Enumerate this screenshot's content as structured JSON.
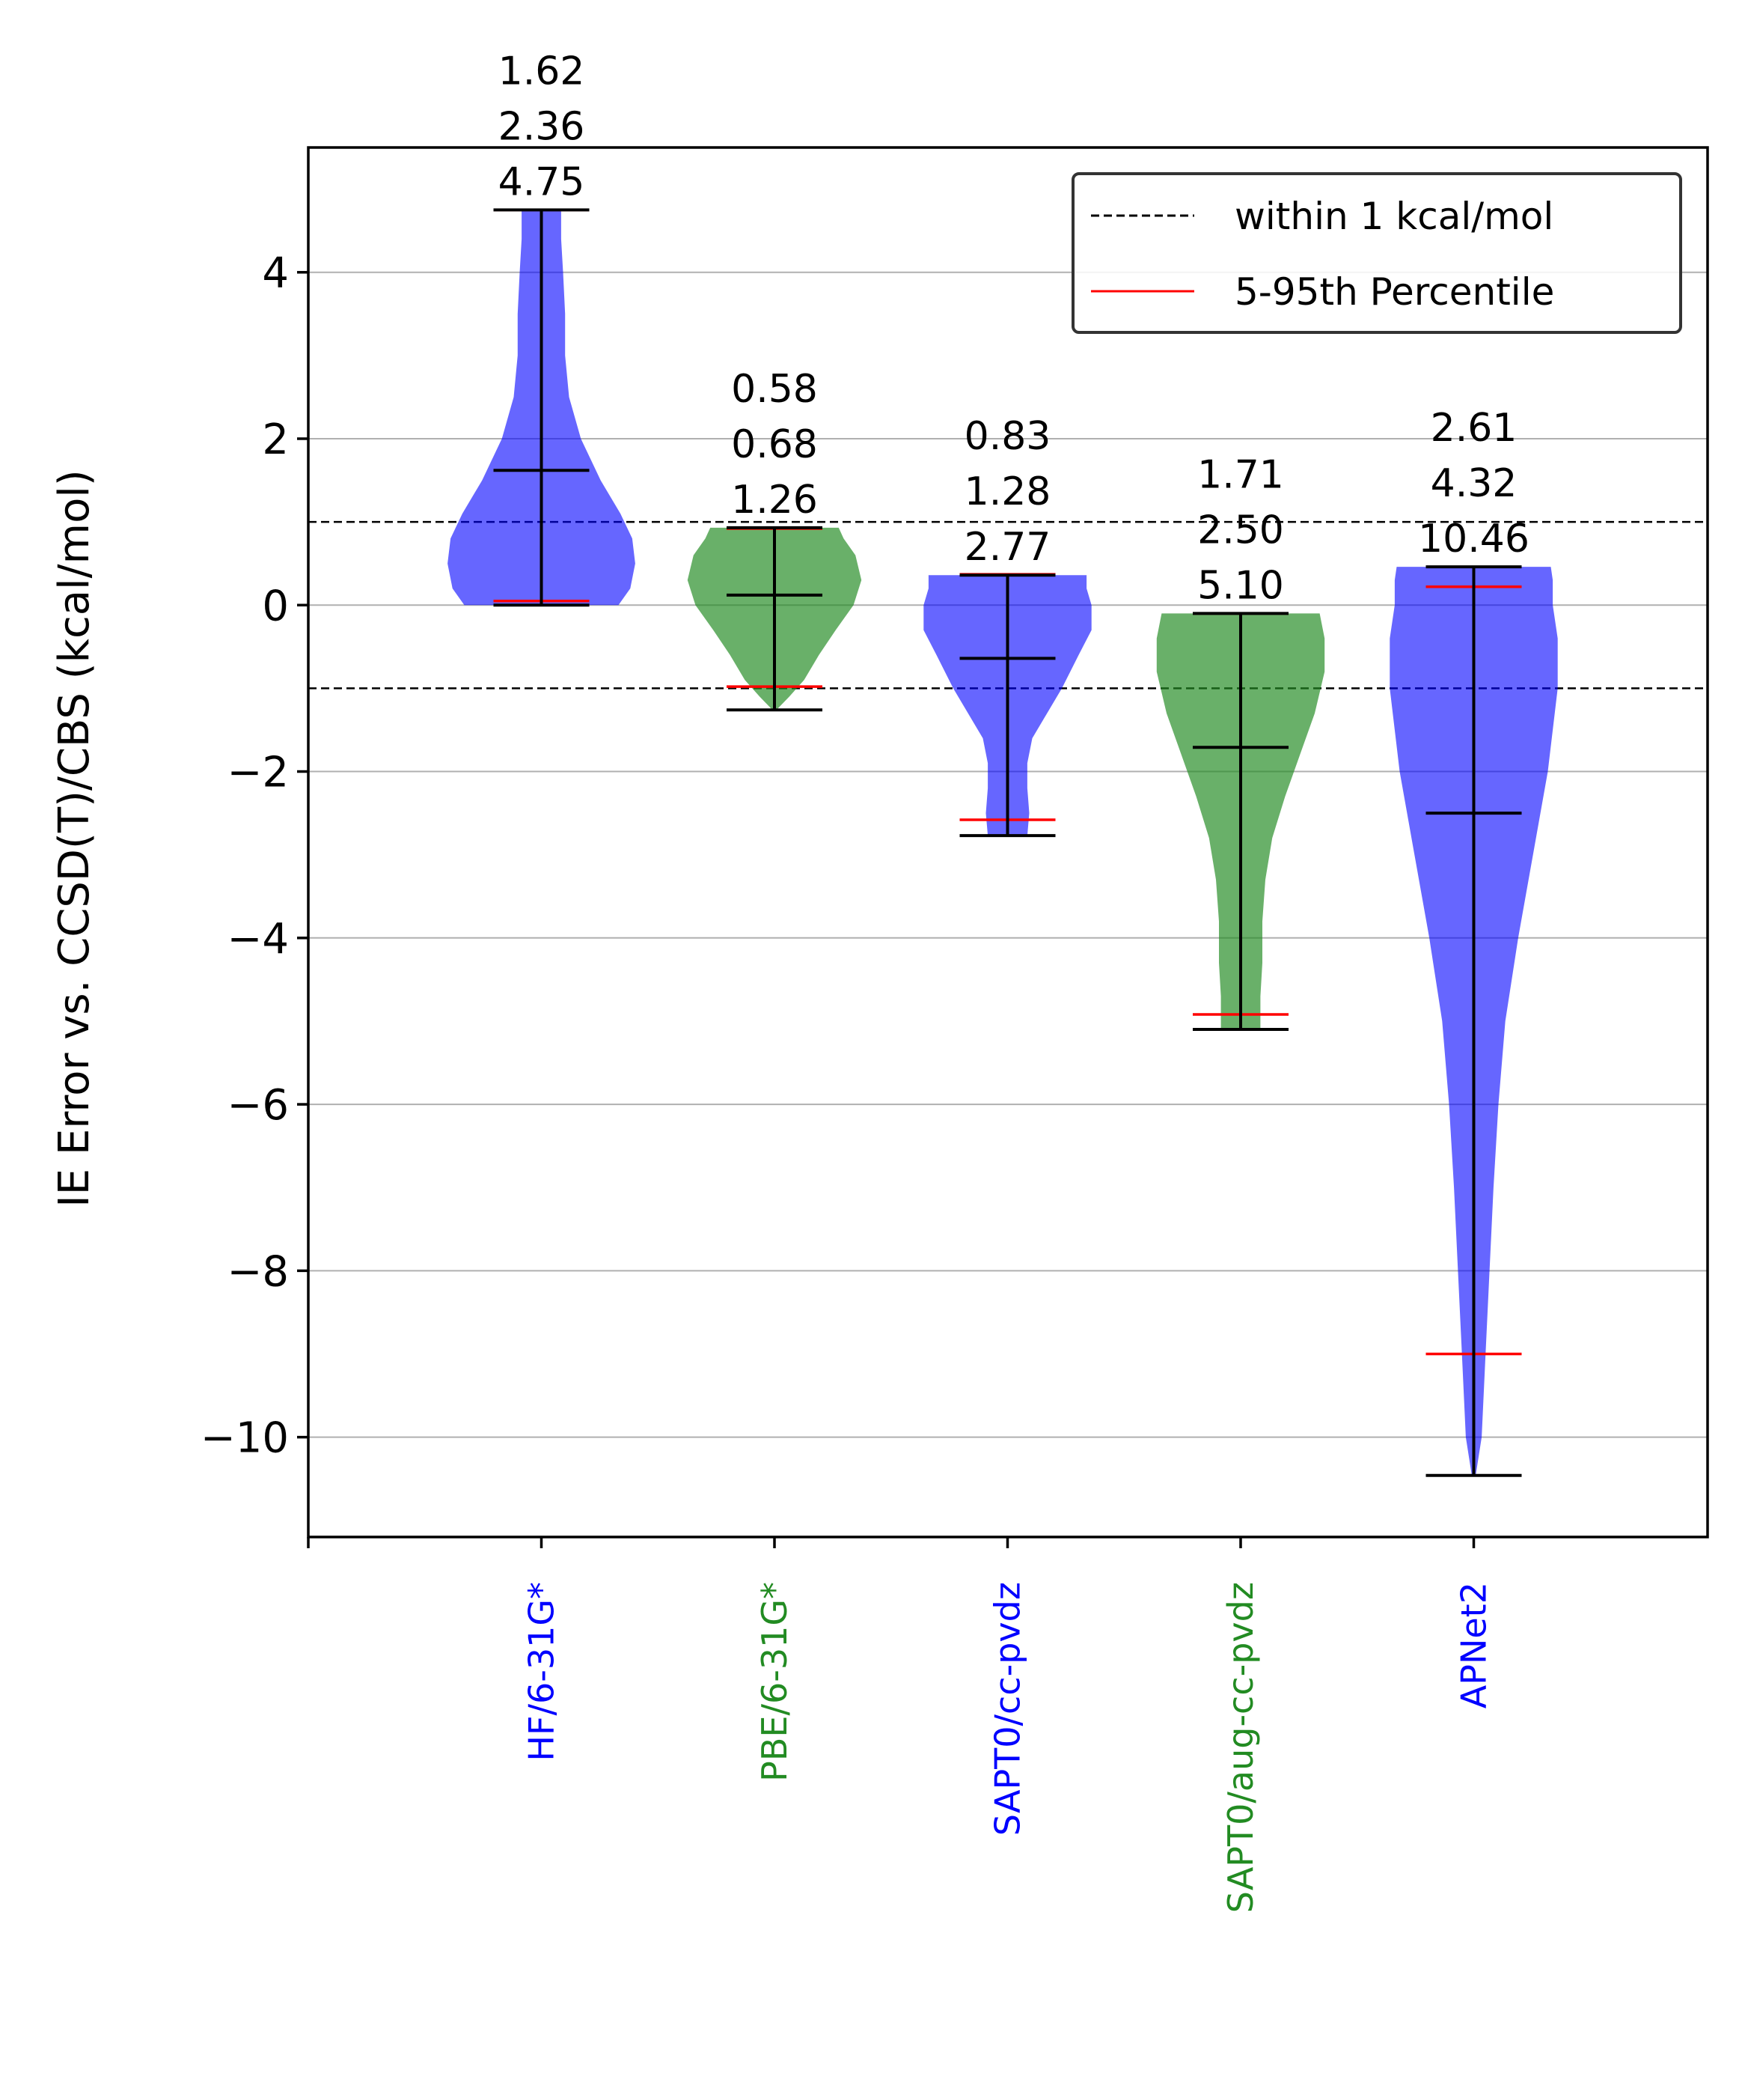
{
  "chart_data": {
    "type": "violin",
    "ylabel": "IE Error vs. CCSD(T)/CBS (kcal/mol)",
    "xlabel": "",
    "ylim": [
      -11.2,
      5.5
    ],
    "yticks": [
      4,
      2,
      0,
      -2,
      -4,
      -6,
      -8,
      -10
    ],
    "ytick_labels": [
      "4",
      "2",
      "0",
      "−2",
      "−4",
      "−6",
      "−8",
      "−10"
    ],
    "grid": "horizontal",
    "reference_lines": [
      1,
      -1
    ],
    "legend": {
      "placement": "top-right",
      "entries": [
        {
          "label": "within 1 kcal/mol",
          "style": "dashed",
          "color": "#000000"
        },
        {
          "label": "5-95th Percentile",
          "style": "solid",
          "color": "#ff0000"
        }
      ]
    },
    "categories": [
      "HF/6-31G*",
      "PBE/6-31G*",
      "SAPT0/cc-pvdz",
      "SAPT0/aug-cc-pvdz",
      "APNet2"
    ],
    "series": [
      {
        "label": "HF/6-31G*",
        "color": "#0000ff",
        "annotations": [
          "1.62",
          "2.36",
          "4.75"
        ],
        "min": 0.0,
        "max": 4.75,
        "mean": 1.62,
        "p5": 0.05,
        "p95": 4.75,
        "density": [
          [
            0.0,
            0.78
          ],
          [
            0.2,
            0.9
          ],
          [
            0.5,
            0.95
          ],
          [
            0.8,
            0.92
          ],
          [
            1.1,
            0.8
          ],
          [
            1.5,
            0.6
          ],
          [
            2.0,
            0.4
          ],
          [
            2.5,
            0.28
          ],
          [
            3.0,
            0.24
          ],
          [
            3.5,
            0.24
          ],
          [
            4.0,
            0.22
          ],
          [
            4.4,
            0.2
          ],
          [
            4.75,
            0.2
          ]
        ]
      },
      {
        "label": "PBE/6-31G*",
        "color": "#228b22",
        "annotations": [
          "0.58",
          "0.68",
          "1.26"
        ],
        "min": -1.26,
        "max": 0.93,
        "mean": 0.12,
        "p5": -0.98,
        "p95": 0.92,
        "density": [
          [
            -1.26,
            0.02
          ],
          [
            -1.1,
            0.15
          ],
          [
            -0.9,
            0.3
          ],
          [
            -0.6,
            0.45
          ],
          [
            -0.3,
            0.62
          ],
          [
            0.0,
            0.8
          ],
          [
            0.3,
            0.88
          ],
          [
            0.6,
            0.82
          ],
          [
            0.8,
            0.7
          ],
          [
            0.93,
            0.65
          ]
        ]
      },
      {
        "label": "SAPT0/cc-pvdz",
        "color": "#0000ff",
        "annotations": [
          "0.83",
          "1.28",
          "2.77"
        ],
        "min": -2.77,
        "max": 0.36,
        "mean": -0.64,
        "p5": -2.58,
        "p95": 0.37,
        "density": [
          [
            -2.77,
            0.2
          ],
          [
            -2.5,
            0.22
          ],
          [
            -2.2,
            0.2
          ],
          [
            -1.9,
            0.2
          ],
          [
            -1.6,
            0.25
          ],
          [
            -1.3,
            0.4
          ],
          [
            -1.0,
            0.55
          ],
          [
            -0.6,
            0.72
          ],
          [
            -0.3,
            0.85
          ],
          [
            0.0,
            0.85
          ],
          [
            0.2,
            0.8
          ],
          [
            0.36,
            0.8
          ]
        ]
      },
      {
        "label": "SAPT0/aug-cc-pvdz",
        "color": "#228b22",
        "annotations": [
          "1.71",
          "2.50",
          "5.10"
        ],
        "min": -5.1,
        "max": -0.1,
        "mean": -1.71,
        "p5": -4.92,
        "p95": -0.1,
        "density": [
          [
            -5.1,
            0.2
          ],
          [
            -4.7,
            0.2
          ],
          [
            -4.3,
            0.22
          ],
          [
            -3.8,
            0.22
          ],
          [
            -3.3,
            0.25
          ],
          [
            -2.8,
            0.32
          ],
          [
            -2.3,
            0.45
          ],
          [
            -1.8,
            0.6
          ],
          [
            -1.3,
            0.75
          ],
          [
            -0.8,
            0.85
          ],
          [
            -0.4,
            0.85
          ],
          [
            -0.1,
            0.8
          ]
        ]
      },
      {
        "label": "APNet2",
        "color": "#0000ff",
        "annotations": [
          "2.61",
          "4.32",
          "10.46"
        ],
        "min": -10.46,
        "max": 0.46,
        "mean": -2.5,
        "p5": -9.0,
        "p95": 0.22,
        "density": [
          [
            -10.46,
            0.02
          ],
          [
            -10.0,
            0.08
          ],
          [
            -9.0,
            0.12
          ],
          [
            -8.0,
            0.16
          ],
          [
            -7.0,
            0.2
          ],
          [
            -6.0,
            0.25
          ],
          [
            -5.0,
            0.32
          ],
          [
            -4.0,
            0.45
          ],
          [
            -3.0,
            0.6
          ],
          [
            -2.0,
            0.75
          ],
          [
            -1.0,
            0.85
          ],
          [
            -0.4,
            0.85
          ],
          [
            0.0,
            0.8
          ],
          [
            0.3,
            0.8
          ],
          [
            0.46,
            0.78
          ]
        ]
      }
    ]
  }
}
